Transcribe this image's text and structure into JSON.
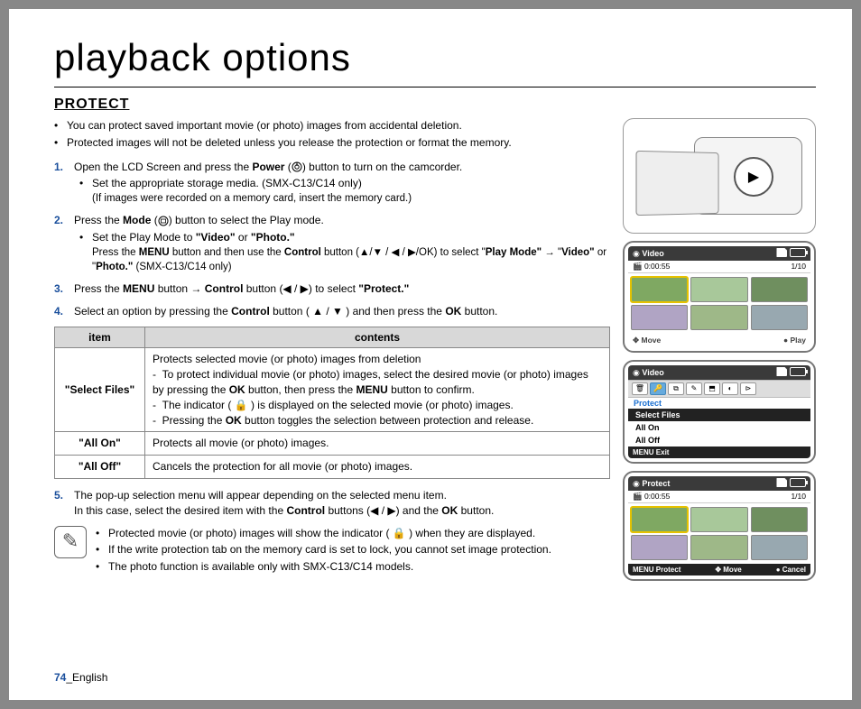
{
  "page": {
    "title": "playback options",
    "section": "PROTECT",
    "number": "74",
    "lang": "English"
  },
  "intro": {
    "b1": "You can protect saved important movie (or photo) images from accidental deletion.",
    "b2": "Protected images will not be deleted unless you release the protection or format the memory."
  },
  "steps": {
    "s1": {
      "num": "1.",
      "text_a": "Open the LCD Screen and press the ",
      "power": "Power",
      "text_b": " button to turn on the camcorder.",
      "sub1": "Set the appropriate storage media. (SMX-C13/C14 only)",
      "sub2": "(If images were recorded on a memory card, insert the memory card.)"
    },
    "s2": {
      "num": "2.",
      "text_a": "Press the ",
      "mode": "Mode",
      "text_b": " button to select the Play mode.",
      "sub1_a": "Set the Play Mode to ",
      "sub1_b": "\"Video\"",
      "sub1_c": " or ",
      "sub1_d": "\"Photo.\"",
      "sub2_a": "Press the ",
      "menu": "MENU",
      "sub2_b": " button and then use the ",
      "control": "Control",
      "sub2_c": " button (▲/▼ / ◀ / ▶/OK) to select \"",
      "pm": "Play Mode\"",
      "arrow": " → \"",
      "vid": "Video\"",
      "or": " or \"",
      "photo": "Photo.\"",
      "tail": " (SMX-C13/C14 only)"
    },
    "s3": {
      "num": "3.",
      "text_a": "Press the ",
      "menu": "MENU",
      "text_b": " button → ",
      "control": "Control",
      "text_c": " button (◀ / ▶) to select ",
      "protect": "\"Protect.\""
    },
    "s4": {
      "num": "4.",
      "text_a": "Select an option by pressing the ",
      "control": "Control",
      "text_b": " button ( ▲ / ▼ ) and then press the ",
      "ok": "OK",
      "text_c": " button."
    },
    "s5": {
      "num": "5.",
      "text_a": "The pop-up selection menu will appear depending on the selected menu item.",
      "text_b_a": "In this case, select the desired item with the ",
      "control": "Control",
      "text_b_b": " buttons (◀ / ▶) and the ",
      "ok": "OK",
      "text_b_c": " button."
    }
  },
  "table": {
    "h1": "item",
    "h2": "contents",
    "r1": {
      "item": "\"Select Files\"",
      "l1": "Protects selected movie (or photo) images from deletion",
      "l2a": "To protect individual movie (or photo) images, select the desired movie (or photo) images by pressing the ",
      "l2ok": "OK",
      "l2b": " button, then press the ",
      "l2menu": "MENU",
      "l2c": " button to confirm.",
      "l3": "The indicator ( 🔒 ) is displayed on the selected movie (or photo) images.",
      "l4a": "Pressing the ",
      "l4ok": "OK",
      "l4b": " button toggles the selection between protection and release."
    },
    "r2": {
      "item": "\"All On\"",
      "c": "Protects all movie (or photo) images."
    },
    "r3": {
      "item": "\"All Off\"",
      "c": "Cancels the protection for all movie (or photo) images."
    }
  },
  "notes": {
    "n1": "Protected movie (or photo) images will show the indicator ( 🔒 ) when they are displayed.",
    "n2": "If the write protection tab on the memory card is set to lock, you cannot set image protection.",
    "n3": "The photo function is available only with SMX-C13/C14 models."
  },
  "lcd": {
    "video": "Video",
    "time": "0:00:55",
    "count": "1/10",
    "move": "Move",
    "play": "Play",
    "protect": "Protect",
    "selectfiles": "Select Files",
    "allon": "All On",
    "alloff": "All Off",
    "menu": "MENU",
    "exit": "Exit",
    "cancel": "Cancel",
    "thumb_colors": [
      "#7fa862",
      "#a8c89a",
      "#6f8f5f",
      "#b0a4c4",
      "#9eb888",
      "#98a8b0"
    ]
  }
}
